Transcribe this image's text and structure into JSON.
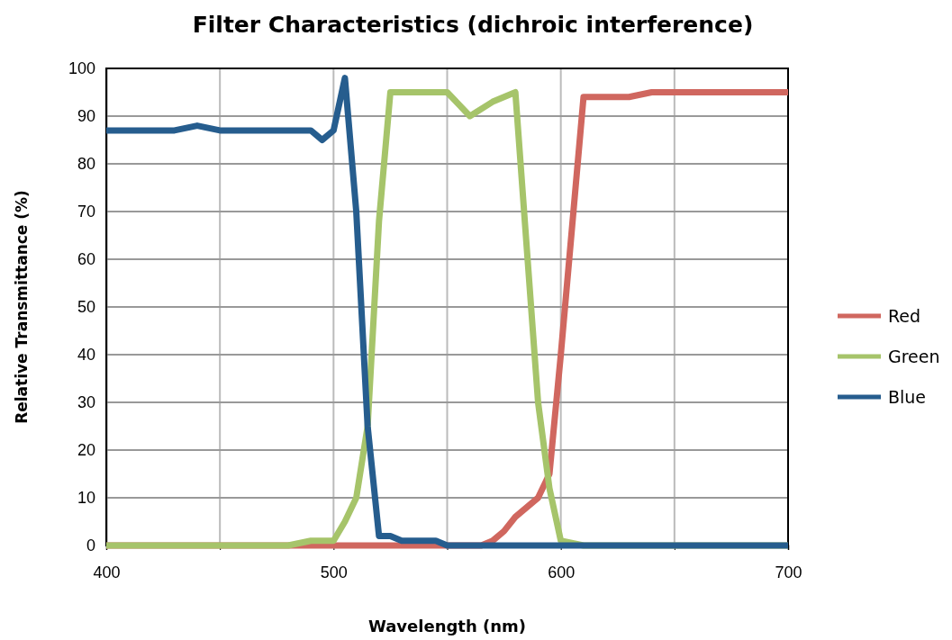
{
  "chart_data": {
    "type": "line",
    "title": "Filter Characteristics (dichroic interference)",
    "xlabel": "Wavelength (nm)",
    "ylabel": "Relative Transmittance (%)",
    "xlim": [
      400,
      700
    ],
    "xticks": [
      400,
      {
        "value": 450,
        "label": null
      },
      500,
      {
        "value": 550,
        "label": null
      },
      600,
      {
        "value": 650,
        "label": null
      },
      700
    ],
    "ylim": [
      0,
      100
    ],
    "yticks": [
      0,
      10,
      20,
      30,
      40,
      50,
      60,
      70,
      80,
      90,
      100
    ],
    "grid": true,
    "legend": "right",
    "marker": "none",
    "line_style": "solid",
    "series": [
      {
        "name": "Red",
        "color": "#d0675f",
        "x": [
          400,
          560,
          565,
          570,
          575,
          580,
          590,
          595,
          600,
          605,
          610,
          620,
          630,
          640,
          650,
          660,
          670,
          680,
          690,
          700
        ],
        "values": [
          0,
          0,
          0,
          1,
          3,
          6,
          10,
          15,
          40,
          67,
          94,
          94,
          94,
          95,
          95,
          95,
          95,
          95,
          95,
          95
        ]
      },
      {
        "name": "Green",
        "color": "#a6c46a",
        "x": [
          400,
          480,
          490,
          500,
          505,
          510,
          515,
          520,
          525,
          530,
          540,
          550,
          560,
          570,
          580,
          590,
          595,
          600,
          610,
          700
        ],
        "values": [
          0,
          0,
          1,
          1,
          5,
          10,
          25,
          68,
          95,
          95,
          95,
          95,
          90,
          93,
          95,
          30,
          12,
          1,
          0,
          0
        ]
      },
      {
        "name": "Blue",
        "color": "#265d8e",
        "x": [
          400,
          410,
          420,
          430,
          440,
          450,
          460,
          470,
          480,
          490,
          495,
          500,
          505,
          510,
          515,
          520,
          525,
          530,
          545,
          550,
          700
        ],
        "values": [
          87,
          87,
          87,
          87,
          88,
          87,
          87,
          87,
          87,
          87,
          85,
          87,
          98,
          70,
          25,
          2,
          2,
          1,
          1,
          0,
          0
        ]
      }
    ]
  }
}
